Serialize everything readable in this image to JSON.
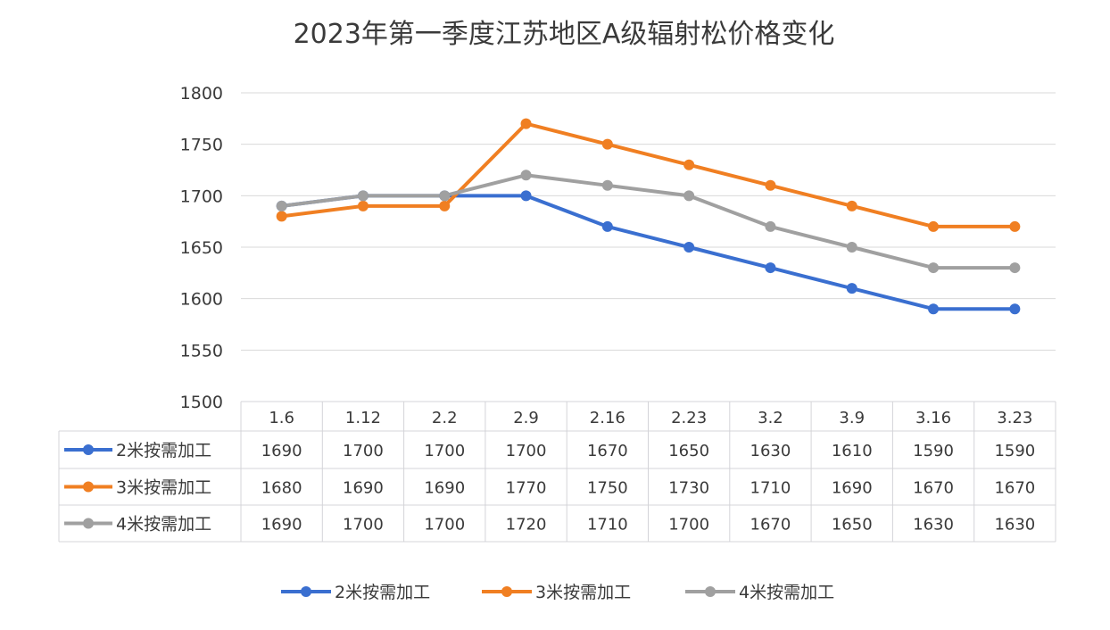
{
  "chart_data": {
    "type": "line",
    "title": "2023年第一季度江苏地区A级辐射松价格变化",
    "categories": [
      "1.6",
      "1.12",
      "2.2",
      "2.9",
      "2.16",
      "2.23",
      "3.2",
      "3.9",
      "3.16",
      "3.23"
    ],
    "ylim": [
      1500,
      1800
    ],
    "yticks": [
      1500,
      1550,
      1600,
      1650,
      1700,
      1750,
      1800
    ],
    "grid": true,
    "legend_position": "bottom",
    "data_table": true,
    "series": [
      {
        "name": "2米按需加工",
        "color": "#3a6fd0",
        "values": [
          1690,
          1700,
          1700,
          1700,
          1670,
          1650,
          1630,
          1610,
          1590,
          1590
        ]
      },
      {
        "name": "3米按需加工",
        "color": "#f07f22",
        "values": [
          1680,
          1690,
          1690,
          1770,
          1750,
          1730,
          1710,
          1690,
          1670,
          1670
        ]
      },
      {
        "name": "4米按需加工",
        "color": "#a0a0a0",
        "values": [
          1690,
          1700,
          1700,
          1720,
          1710,
          1700,
          1670,
          1650,
          1630,
          1630
        ]
      }
    ]
  }
}
